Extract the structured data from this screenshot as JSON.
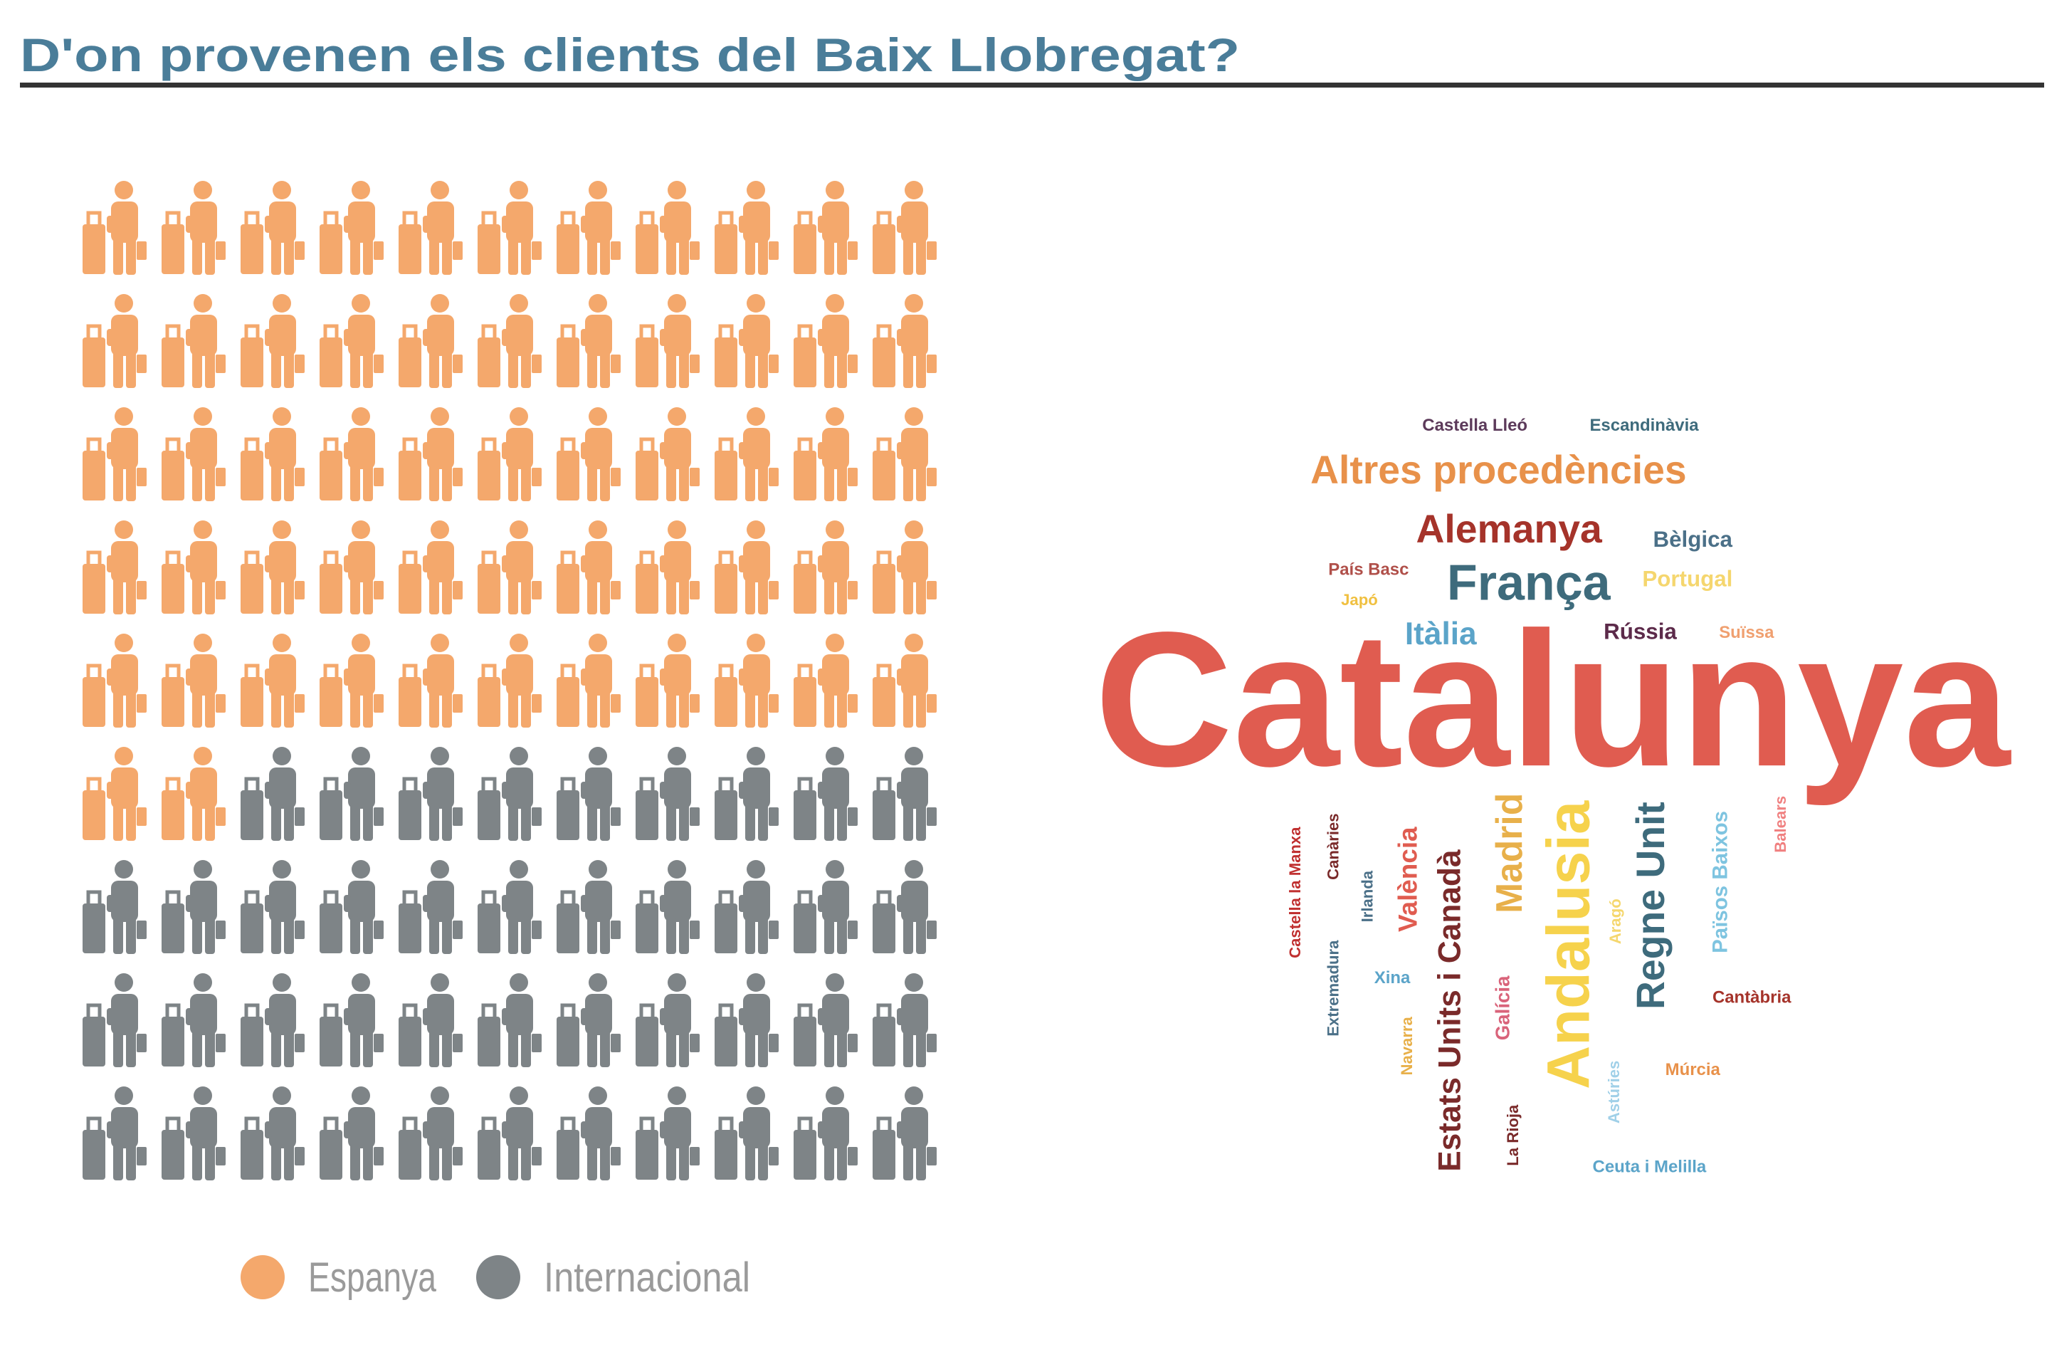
{
  "chart_data": [
    {
      "type": "pictogram",
      "title": "D'on provenen els clients del Baix Llobregat?",
      "series": [
        {
          "name": "Espanya",
          "color": "#f4a86c",
          "values": [
            57
          ]
        },
        {
          "name": "Internacional",
          "color": "#7e8487",
          "values": [
            42
          ]
        }
      ]
    },
    {
      "type": "wordcloud",
      "categories": [
        "Catalunya",
        "Altres procedències",
        "Alemanya",
        "França",
        "Itàlia",
        "Bèlgica",
        "Portugal",
        "Rússia",
        "Suïssa",
        "País Basc",
        "Japó",
        "Castella Lleó",
        "Escandinàvia",
        "Cantàbria",
        "Múrcia",
        "Ceuta i Melilla",
        "Xina",
        "Andalusia",
        "Regne Unit",
        "Madrid",
        "Estats Units i Canadà",
        "València",
        "Països Baixos",
        "Galícia",
        "Balears",
        "Aragó",
        "Astúries",
        "La Rioja",
        "Navarra",
        "Extremadura",
        "Irlanda",
        "Canàries",
        "Castella la Manxa"
      ],
      "values": [
        146,
        30,
        30,
        38,
        24,
        17,
        17,
        17,
        13,
        13,
        12,
        13,
        13,
        13,
        13,
        13,
        13,
        46,
        30,
        28,
        24,
        20,
        16,
        15,
        12,
        12,
        12,
        12,
        12,
        12,
        12,
        12,
        12
      ],
      "colors": [
        "#e05c50",
        "#e8914a",
        "#a5332a",
        "#3e6b7c",
        "#5ba4c9",
        "#4b7088",
        "#f5d66e",
        "#5c2a4a",
        "#f0a070",
        "#b0504a",
        "#f0c040",
        "#5c3a5a",
        "#3e6b7c",
        "#a5332a",
        "#e8914a",
        "#5ba4c9",
        "#5ba4c9",
        "#f6d24c",
        "#3e6b7c",
        "#e8b04a",
        "#7a2a2a",
        "#e05c50",
        "#7ec4e0",
        "#d9637a",
        "#f08080",
        "#f5d76e",
        "#a0d0e8",
        "#7a2a2a",
        "#e8b04a",
        "#4b7088",
        "#4b7088",
        "#7a2a2a",
        "#c03030"
      ]
    }
  ]
}
